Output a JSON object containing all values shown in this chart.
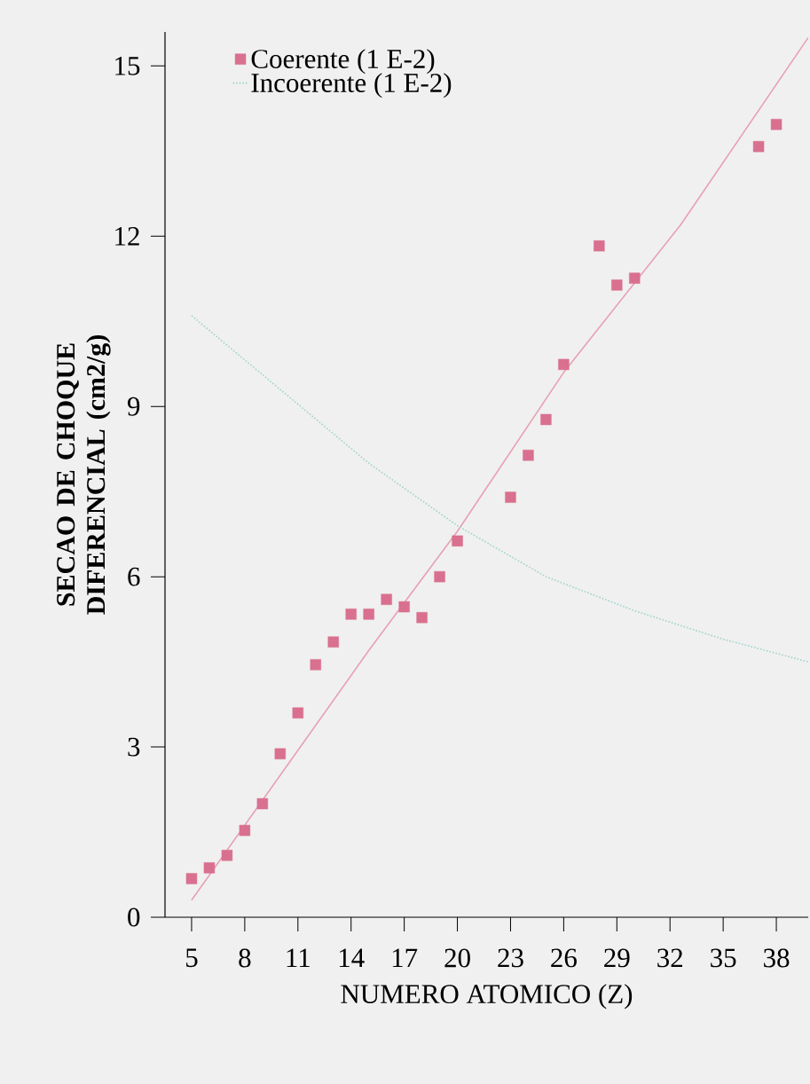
{
  "chart_data": {
    "type": "scatter",
    "xlabel": "NUMERO ATOMICO (Z)",
    "ylabel": "SECAO DE CHOQUE DIFERENCIAL (cm2/g)",
    "xlim": [
      3.5,
      39.8
    ],
    "ylim": [
      0,
      15.6
    ],
    "xticks": [
      5,
      8,
      11,
      14,
      17,
      20,
      23,
      26,
      29,
      32,
      35,
      38
    ],
    "yticks": [
      0,
      3,
      6,
      9,
      12,
      15
    ],
    "legend": "top left",
    "grid": false,
    "series": [
      {
        "name": "Coerente (1 E-2)",
        "marker": "square",
        "color": "#d9708f",
        "x": [
          5,
          6,
          7,
          8,
          9,
          10,
          11,
          12,
          13,
          14,
          15,
          16,
          17,
          18,
          19,
          20,
          23,
          24,
          25,
          26,
          28,
          29,
          30,
          37,
          38
        ],
        "values": [
          0.68,
          0.87,
          1.09,
          1.53,
          2.0,
          2.88,
          3.6,
          4.45,
          4.85,
          5.34,
          5.34,
          5.6,
          5.47,
          5.28,
          6.0,
          6.63,
          7.4,
          8.14,
          8.77,
          9.74,
          11.83,
          11.14,
          11.26,
          13.58,
          13.97
        ]
      },
      {
        "type": "line",
        "line_style": "solid",
        "color": "#e8a0b4",
        "x": [
          5,
          10,
          15,
          20,
          26,
          32.6,
          39.8
        ],
        "values": [
          0.3,
          2.5,
          4.7,
          6.8,
          9.6,
          12.2,
          15.5
        ]
      },
      {
        "name": "Incoerente (1 E-2)",
        "type": "line",
        "line_style": "dotted",
        "color": "#9fd3cb",
        "x": [
          5,
          10,
          15,
          20,
          25,
          30,
          35,
          39.8
        ],
        "values": [
          10.6,
          9.3,
          8.0,
          6.9,
          6.0,
          5.4,
          4.9,
          4.5
        ]
      }
    ]
  }
}
